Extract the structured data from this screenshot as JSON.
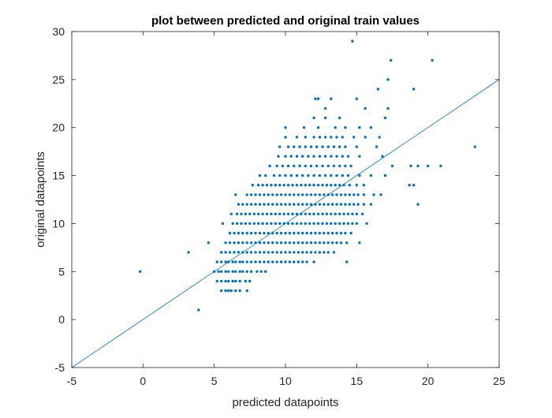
{
  "chart_data": {
    "type": "scatter",
    "title": "plot between predicted and original train values",
    "xlabel": "predicted datapoints",
    "ylabel": "original datapoints",
    "xlim": [
      -5,
      25
    ],
    "ylim": [
      -5,
      30
    ],
    "xticks": [
      -5,
      0,
      5,
      10,
      15,
      20,
      25
    ],
    "yticks": [
      -5,
      0,
      5,
      10,
      15,
      20,
      25,
      30
    ],
    "xtick_labels": [
      "-5",
      "0",
      "5",
      "10",
      "15",
      "20",
      "25"
    ],
    "ytick_labels": [
      "-5",
      "0",
      "5",
      "10",
      "15",
      "20",
      "25",
      "30"
    ],
    "grid": false,
    "box": true,
    "marker_color": "#0072BD",
    "line_color": "#0072BD",
    "reference_line": {
      "x": [
        -5,
        25
      ],
      "y": [
        -5,
        25
      ]
    },
    "bands": [
      {
        "y": 3,
        "x": [
          5.5,
          5.8,
          6.0,
          6.2,
          6.5,
          6.8,
          7.3
        ]
      },
      {
        "y": 4,
        "x": [
          5.2,
          5.5,
          5.8,
          6.0,
          6.3,
          6.5,
          6.8,
          7.2,
          7.5
        ]
      },
      {
        "y": 5,
        "x": [
          -0.2,
          5.0,
          5.3,
          5.5,
          5.8,
          6.0,
          6.3,
          6.5,
          6.8,
          7.0,
          7.3,
          7.6,
          8.0,
          8.3,
          8.6
        ]
      },
      {
        "y": 6,
        "x": [
          5.2,
          5.5,
          5.8,
          6.0,
          6.3,
          6.5,
          6.8,
          7.0,
          7.3,
          7.6,
          7.9,
          8.2,
          8.5,
          8.8,
          9.1,
          9.4,
          9.7,
          10.0,
          10.3,
          10.6,
          10.9,
          11.2,
          11.5,
          12.0,
          14.3
        ]
      },
      {
        "y": 7,
        "x": [
          3.2,
          5.5,
          5.8,
          6.1,
          6.4,
          6.7,
          7.0,
          7.3,
          7.6,
          7.9,
          8.2,
          8.5,
          8.8,
          9.1,
          9.4,
          9.7,
          10.0,
          10.3,
          10.6,
          10.9,
          11.2,
          11.5,
          11.8,
          12.1,
          12.4,
          12.7,
          13.0,
          13.4
        ]
      },
      {
        "y": 8,
        "x": [
          4.6,
          5.8,
          6.1,
          6.4,
          6.7,
          7.0,
          7.3,
          7.6,
          7.9,
          8.2,
          8.5,
          8.8,
          9.1,
          9.4,
          9.7,
          10.0,
          10.3,
          10.6,
          10.9,
          11.2,
          11.5,
          11.8,
          12.1,
          12.4,
          12.7,
          13.0,
          13.3,
          13.6,
          13.9,
          14.3,
          15.2
        ]
      },
      {
        "y": 9,
        "x": [
          6.1,
          6.4,
          6.7,
          7.0,
          7.3,
          7.6,
          7.9,
          8.2,
          8.5,
          8.8,
          9.1,
          9.4,
          9.7,
          10.0,
          10.3,
          10.6,
          10.9,
          11.2,
          11.5,
          11.8,
          12.1,
          12.4,
          12.7,
          13.0,
          13.3,
          13.6,
          13.9,
          14.2,
          14.6
        ]
      },
      {
        "y": 10,
        "x": [
          5.6,
          6.3,
          6.6,
          6.9,
          7.2,
          7.5,
          7.8,
          8.1,
          8.4,
          8.7,
          9.0,
          9.3,
          9.6,
          9.9,
          10.2,
          10.5,
          10.8,
          11.1,
          11.4,
          11.7,
          12.0,
          12.3,
          12.6,
          12.9,
          13.2,
          13.5,
          13.8,
          14.1,
          14.4,
          14.7,
          15.0,
          15.7
        ]
      },
      {
        "y": 11,
        "x": [
          6.2,
          6.6,
          6.9,
          7.2,
          7.5,
          7.8,
          8.1,
          8.4,
          8.7,
          9.0,
          9.3,
          9.6,
          9.9,
          10.2,
          10.5,
          10.8,
          11.1,
          11.4,
          11.7,
          12.0,
          12.3,
          12.6,
          12.9,
          13.2,
          13.5,
          13.8,
          14.1,
          14.4,
          14.7,
          15.0,
          15.4
        ]
      },
      {
        "y": 12,
        "x": [
          6.7,
          7.0,
          7.3,
          7.6,
          7.9,
          8.2,
          8.5,
          8.8,
          9.1,
          9.4,
          9.7,
          10.0,
          10.3,
          10.6,
          10.9,
          11.2,
          11.5,
          11.8,
          12.1,
          12.4,
          12.7,
          13.0,
          13.3,
          13.6,
          13.9,
          14.2,
          14.5,
          14.8,
          15.1,
          15.5,
          16.0,
          19.3
        ]
      },
      {
        "y": 13,
        "x": [
          6.5,
          7.3,
          7.6,
          7.9,
          8.2,
          8.5,
          8.8,
          9.1,
          9.4,
          9.7,
          10.0,
          10.3,
          10.6,
          10.9,
          11.2,
          11.5,
          11.8,
          12.1,
          12.4,
          12.7,
          13.0,
          13.3,
          13.6,
          13.9,
          14.2,
          14.5,
          14.8,
          15.1,
          15.5,
          16.2,
          16.7
        ]
      },
      {
        "y": 14,
        "x": [
          7.7,
          8.1,
          8.4,
          8.7,
          9.0,
          9.3,
          9.6,
          9.9,
          10.2,
          10.5,
          10.8,
          11.1,
          11.4,
          11.7,
          12.0,
          12.3,
          12.6,
          12.9,
          13.2,
          13.5,
          13.8,
          14.1,
          14.5,
          15.0,
          15.5,
          18.7,
          19.0
        ]
      },
      {
        "y": 15,
        "x": [
          8.2,
          8.6,
          9.2,
          9.6,
          10.0,
          10.4,
          10.8,
          11.2,
          11.6,
          12.0,
          12.4,
          12.8,
          13.2,
          13.6,
          14.0,
          14.4,
          15.2,
          16.0,
          17.0
        ]
      },
      {
        "y": 16,
        "x": [
          8.9,
          9.4,
          9.8,
          10.2,
          10.6,
          11.0,
          11.4,
          11.8,
          12.2,
          12.6,
          13.0,
          13.4,
          13.8,
          14.2,
          14.6,
          17.5,
          18.8,
          19.3,
          20.0,
          20.9
        ]
      },
      {
        "y": 17,
        "x": [
          9.5,
          10.0,
          10.4,
          10.8,
          11.2,
          11.6,
          12.0,
          12.4,
          12.8,
          13.2,
          13.6,
          14.0,
          14.4,
          15.2,
          16.8
        ]
      },
      {
        "y": 18,
        "x": [
          9.6,
          10.2,
          10.6,
          11.0,
          11.4,
          11.8,
          12.2,
          12.6,
          13.0,
          13.4,
          13.8,
          14.2,
          15.0,
          16.4,
          23.3
        ]
      },
      {
        "y": 19,
        "x": [
          10.0,
          10.8,
          11.4,
          12.0,
          12.4,
          12.8,
          13.2,
          13.6,
          14.0,
          14.8,
          15.6,
          16.6
        ]
      },
      {
        "y": 20,
        "x": [
          10.0,
          11.3,
          12.3,
          13.5,
          14.2,
          15.2,
          16.0
        ]
      },
      {
        "y": 21,
        "x": [
          12.0,
          12.8,
          13.8,
          17.0
        ]
      },
      {
        "y": 22,
        "x": [
          12.8,
          15.6,
          17.2
        ]
      },
      {
        "y": 23,
        "x": [
          12.1,
          12.3,
          13.2,
          15.0
        ]
      },
      {
        "y": 24,
        "x": [
          16.5,
          19.0
        ]
      },
      {
        "y": 25,
        "x": [
          17.2
        ]
      },
      {
        "y": 27,
        "x": [
          17.4,
          20.3
        ]
      },
      {
        "y": 29,
        "x": [
          14.7
        ]
      },
      {
        "y": 1,
        "x": [
          3.9
        ]
      }
    ]
  }
}
